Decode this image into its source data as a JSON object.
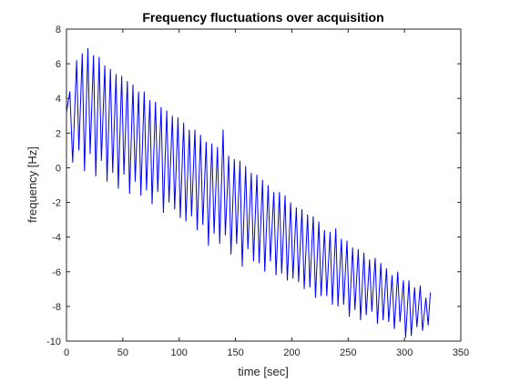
{
  "chart_data": {
    "type": "line",
    "title": "Frequency fluctuations over acquisition",
    "xlabel": "time [sec]",
    "ylabel": "frequency [Hz]",
    "xlim": [
      0,
      350
    ],
    "ylim": [
      -10,
      8
    ],
    "xticks": [
      0,
      50,
      100,
      150,
      200,
      250,
      300,
      350
    ],
    "yticks": [
      -10,
      -8,
      -6,
      -4,
      -2,
      0,
      2,
      4,
      6,
      8
    ],
    "grid": false,
    "series": [
      {
        "color": "#0000ff",
        "x": [
          0,
          3,
          5.5,
          9,
          11,
          14,
          16,
          19,
          21,
          24,
          26,
          29,
          31,
          34,
          36,
          39,
          41,
          44,
          46,
          49,
          51,
          54,
          56,
          59,
          61,
          64,
          66,
          69,
          71,
          74,
          76,
          79,
          81,
          84,
          86,
          89,
          91,
          94,
          96,
          99,
          101,
          104,
          106,
          109,
          111,
          114,
          116,
          119,
          121,
          124,
          126,
          129,
          131,
          134,
          136,
          139,
          141,
          144,
          146,
          149,
          151,
          154,
          156,
          159,
          161,
          164,
          166,
          169,
          171,
          174,
          176,
          179,
          181,
          184,
          186,
          189,
          191,
          194,
          196,
          199,
          201,
          204,
          206,
          209,
          211,
          214,
          216,
          219,
          221,
          224,
          226,
          229,
          231,
          234,
          236,
          239,
          241,
          244,
          246,
          249,
          251,
          254,
          256,
          259,
          261,
          264,
          266,
          269,
          271,
          274,
          276,
          279,
          281,
          284,
          286,
          289,
          291,
          294,
          296,
          299,
          301,
          304,
          306,
          309,
          311,
          314,
          316,
          319,
          321,
          323
        ],
        "y": [
          3.2,
          4.4,
          0.3,
          6.2,
          1.0,
          6.6,
          -0.2,
          6.9,
          0.8,
          6.5,
          -0.5,
          6.4,
          0.4,
          5.9,
          -0.8,
          5.7,
          -0.3,
          5.4,
          -1.2,
          5.3,
          -0.4,
          5.0,
          -1.5,
          4.8,
          -0.8,
          4.4,
          -1.6,
          4.4,
          -1.3,
          3.9,
          -2.1,
          3.8,
          -1.4,
          3.5,
          -2.6,
          3.3,
          -2.0,
          3.0,
          -2.4,
          2.9,
          -2.9,
          2.6,
          -3.1,
          2.2,
          -2.8,
          2.2,
          -3.6,
          1.9,
          -3.3,
          1.5,
          -4.5,
          1.4,
          -3.8,
          1.2,
          -4.4,
          2.2,
          -3.9,
          0.7,
          -5.0,
          0.5,
          -4.4,
          0.4,
          -5.7,
          0.1,
          -4.7,
          -0.3,
          -5.4,
          -0.4,
          -5.5,
          -0.7,
          -6.0,
          -1.0,
          -5.4,
          -1.4,
          -6.2,
          -1.4,
          -6.1,
          -1.6,
          -6.5,
          -2.0,
          -6.4,
          -2.3,
          -6.6,
          -2.4,
          -7.0,
          -2.7,
          -6.9,
          -2.8,
          -7.5,
          -3.1,
          -7.4,
          -3.6,
          -7.4,
          -3.7,
          -7.9,
          -3.5,
          -8.0,
          -4.1,
          -7.9,
          -4.2,
          -8.6,
          -4.6,
          -8.2,
          -4.7,
          -8.8,
          -4.9,
          -8.5,
          -5.3,
          -8.3,
          -5.2,
          -9.0,
          -5.5,
          -8.8,
          -5.8,
          -8.9,
          -6.2,
          -9.3,
          -6.0,
          -8.9,
          -6.5,
          -9.8,
          -6.5,
          -9.7,
          -6.9,
          -9.2,
          -6.8,
          -9.4,
          -7.5,
          -9.1,
          -7.2
        ]
      }
    ]
  }
}
